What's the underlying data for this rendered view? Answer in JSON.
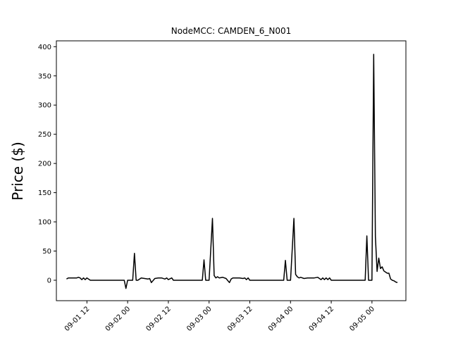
{
  "chart_data": {
    "type": "line",
    "title": "NodeMCC: CAMDEN_6_N001",
    "xlabel": "",
    "ylabel": "Price ($)",
    "x_unit": "datetime",
    "xlim": [
      "2016-09-01 03:00",
      "2016-09-05 10:00"
    ],
    "ylim": [
      -35,
      410
    ],
    "grid": false,
    "legend": "none",
    "line_color": "#000000",
    "y_ticks": [
      0,
      50,
      100,
      150,
      200,
      250,
      300,
      350,
      400
    ],
    "y_tick_labels": [
      "0",
      "50",
      "100",
      "150",
      "200",
      "250",
      "300",
      "350",
      "400"
    ],
    "x_ticks": [
      "2016-09-01 12:00",
      "2016-09-02 00:00",
      "2016-09-02 12:00",
      "2016-09-03 00:00",
      "2016-09-03 12:00",
      "2016-09-04 00:00",
      "2016-09-04 12:00",
      "2016-09-05 00:00"
    ],
    "x_tick_labels": [
      "09-01 12",
      "09-02 00",
      "09-02 12",
      "09-03 00",
      "09-03 12",
      "09-04 00",
      "09-04 12",
      "09-05 00"
    ],
    "series": [
      {
        "x": [
          "2016-09-01 06:00",
          "2016-09-01 06:30",
          "2016-09-01 07:00",
          "2016-09-01 08:00",
          "2016-09-01 09:00",
          "2016-09-01 09:30",
          "2016-09-01 10:00",
          "2016-09-01 10:30",
          "2016-09-01 11:00",
          "2016-09-01 11:30",
          "2016-09-01 12:00",
          "2016-09-01 13:00",
          "2016-09-01 15:00",
          "2016-09-01 18:00",
          "2016-09-01 21:00",
          "2016-09-01 23:00",
          "2016-09-01 23:30",
          "2016-09-02 00:00",
          "2016-09-02 01:00",
          "2016-09-02 01:30",
          "2016-09-02 02:00",
          "2016-09-02 02:30",
          "2016-09-02 03:00",
          "2016-09-02 04:00",
          "2016-09-02 05:00",
          "2016-09-02 06:00",
          "2016-09-02 06:30",
          "2016-09-02 07:00",
          "2016-09-02 08:00",
          "2016-09-02 09:00",
          "2016-09-02 10:00",
          "2016-09-02 11:00",
          "2016-09-02 11:30",
          "2016-09-02 12:00",
          "2016-09-02 13:00",
          "2016-09-02 13:30",
          "2016-09-02 14:00",
          "2016-09-02 16:00",
          "2016-09-02 19:00",
          "2016-09-02 22:00",
          "2016-09-02 22:30",
          "2016-09-02 23:00",
          "2016-09-02 23:30",
          "2016-09-03 00:00",
          "2016-09-03 01:00",
          "2016-09-03 01:30",
          "2016-09-03 02:00",
          "2016-09-03 02:30",
          "2016-09-03 03:00",
          "2016-09-03 04:00",
          "2016-09-03 05:00",
          "2016-09-03 06:00",
          "2016-09-03 06:30",
          "2016-09-03 07:00",
          "2016-09-03 08:00",
          "2016-09-03 09:00",
          "2016-09-03 10:00",
          "2016-09-03 10:30",
          "2016-09-03 11:00",
          "2016-09-03 11:30",
          "2016-09-03 12:00",
          "2016-09-03 15:00",
          "2016-09-03 18:00",
          "2016-09-03 21:00",
          "2016-09-03 22:00",
          "2016-09-03 22:30",
          "2016-09-03 23:00",
          "2016-09-03 23:30",
          "2016-09-04 00:00",
          "2016-09-04 01:00",
          "2016-09-04 01:30",
          "2016-09-04 02:00",
          "2016-09-04 02:30",
          "2016-09-04 03:00",
          "2016-09-04 04:00",
          "2016-09-04 05:00",
          "2016-09-04 06:00",
          "2016-09-04 07:00",
          "2016-09-04 08:00",
          "2016-09-04 09:00",
          "2016-09-04 09:30",
          "2016-09-04 10:00",
          "2016-09-04 10:30",
          "2016-09-04 11:00",
          "2016-09-04 11:30",
          "2016-09-04 12:00",
          "2016-09-04 15:00",
          "2016-09-04 18:00",
          "2016-09-04 21:00",
          "2016-09-04 22:00",
          "2016-09-04 22:30",
          "2016-09-04 23:00",
          "2016-09-04 23:30",
          "2016-09-05 00:00",
          "2016-09-05 00:30",
          "2016-09-05 01:00",
          "2016-09-05 01:30",
          "2016-09-05 02:00",
          "2016-09-05 02:30",
          "2016-09-05 03:00",
          "2016-09-05 03:30",
          "2016-09-05 04:00",
          "2016-09-05 04:30",
          "2016-09-05 05:00",
          "2016-09-05 05:30",
          "2016-09-05 06:00",
          "2016-09-05 06:30",
          "2016-09-05 07:00",
          "2016-09-05 07:30"
        ],
        "y": [
          2,
          4,
          4,
          4,
          4,
          5,
          4,
          1,
          4,
          1,
          4,
          0,
          0,
          0,
          0,
          0,
          -14,
          0,
          0,
          0,
          46,
          0,
          0,
          4,
          3,
          2,
          3,
          -4,
          3,
          4,
          4,
          2,
          4,
          1,
          4,
          0,
          0,
          0,
          0,
          0,
          35,
          0,
          0,
          0,
          106,
          8,
          4,
          6,
          4,
          5,
          3,
          -4,
          2,
          4,
          4,
          4,
          3,
          4,
          1,
          4,
          0,
          0,
          0,
          0,
          0,
          34,
          0,
          0,
          0,
          106,
          10,
          6,
          4,
          5,
          3,
          4,
          4,
          4,
          5,
          1,
          4,
          1,
          4,
          1,
          4,
          0,
          0,
          0,
          0,
          0,
          76,
          0,
          0,
          0,
          387,
          75,
          15,
          38,
          20,
          23,
          16,
          14,
          12,
          12,
          2,
          0,
          -1,
          -3,
          -4
        ]
      }
    ]
  }
}
